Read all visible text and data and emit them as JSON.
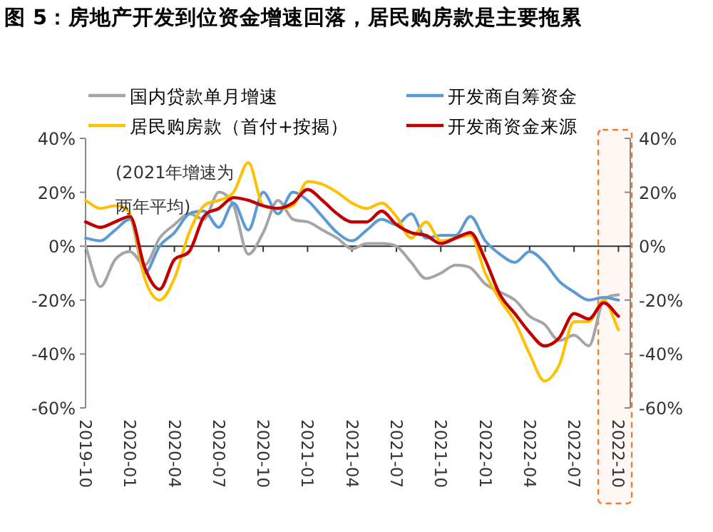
{
  "chart_data": {
    "type": "line",
    "title": "图 5：房地产开发到位资金增速回落，居民购房款是主要拖累",
    "x": [
      "2019-10",
      "2019-11",
      "2019-12",
      "2020-01",
      "2020-02",
      "2020-03",
      "2020-04",
      "2020-05",
      "2020-06",
      "2020-07",
      "2020-08",
      "2020-09",
      "2020-10",
      "2020-11",
      "2020-12",
      "2021-01",
      "2021-02",
      "2021-03",
      "2021-04",
      "2021-05",
      "2021-06",
      "2021-07",
      "2021-08",
      "2021-09",
      "2021-10",
      "2021-11",
      "2021-12",
      "2022-01",
      "2022-02",
      "2022-03",
      "2022-04",
      "2022-05",
      "2022-06",
      "2022-07",
      "2022-08",
      "2022-09",
      "2022-10"
    ],
    "series": [
      {
        "name": "国内贷款单月增速",
        "color": "#a5a5a5",
        "values": [
          0,
          -15,
          -5,
          -2,
          -7,
          3,
          8,
          12,
          10,
          20,
          15,
          -3,
          5,
          17,
          10,
          9,
          6,
          3,
          -1,
          1,
          1,
          0,
          -6,
          -12,
          -10,
          -7,
          -8,
          -14,
          -17,
          -20,
          -26,
          -29,
          -35,
          -33,
          -37,
          -20,
          -18
        ]
      },
      {
        "name": "开发商自筹资金",
        "color": "#5b9bd5",
        "values": [
          3,
          2,
          6,
          10,
          -10,
          0,
          5,
          12,
          13,
          7,
          16,
          6,
          20,
          12,
          20,
          17,
          11,
          5,
          2,
          6,
          10,
          8,
          12,
          3,
          4,
          4,
          11,
          2,
          -3,
          -6,
          -2,
          -6,
          -13,
          -17,
          -20,
          -19,
          -20
        ]
      },
      {
        "name": "居民购房款（首付+按揭）",
        "color": "#ffc000",
        "values": [
          17,
          14,
          15,
          12,
          -12,
          -20,
          -12,
          5,
          15,
          17,
          20,
          31,
          15,
          14,
          15,
          24,
          23,
          20,
          16,
          14,
          16,
          11,
          3,
          9,
          2,
          3,
          4,
          -10,
          -20,
          -28,
          -40,
          -50,
          -44,
          -28,
          -28,
          -20,
          -31
        ]
      },
      {
        "name": "开发商资金来源",
        "color": "#c00000",
        "values": [
          9,
          7,
          9,
          11,
          -8,
          -16,
          -5,
          -2,
          11,
          14,
          18,
          17,
          15,
          14,
          16,
          21,
          17,
          12,
          9,
          9,
          13,
          8,
          5,
          4,
          1,
          3,
          5,
          -5,
          -18,
          -25,
          -32,
          -37,
          -34,
          -25,
          -27,
          -21,
          -26
        ]
      }
    ],
    "xlim": [
      "2019-10",
      "2022-10-25"
    ],
    "xticks": [
      "2019-10",
      "2020-01",
      "2020-04",
      "2020-07",
      "2020-10",
      "2021-01",
      "2021-04",
      "2021-07",
      "2021-10",
      "2022-01",
      "2022-04",
      "2022-07",
      "2022-10"
    ],
    "ylim": [
      -60,
      40
    ],
    "yticks": [
      {
        "value": -60,
        "label": "-60%"
      },
      {
        "value": -40,
        "label": "-40%"
      },
      {
        "value": -20,
        "label": "-20%"
      },
      {
        "value": 0,
        "label": "0%"
      },
      {
        "value": 20,
        "label": "20%"
      },
      {
        "value": 40,
        "label": "40%"
      }
    ],
    "y2lim": [
      -60,
      40
    ],
    "y2ticks": [
      {
        "value": -60,
        "label": "-60%"
      },
      {
        "value": -40,
        "label": "-40%"
      },
      {
        "value": -20,
        "label": "-20%"
      },
      {
        "value": 0,
        "label": "0%"
      },
      {
        "value": 20,
        "label": "20%"
      },
      {
        "value": 40,
        "label": "40%"
      }
    ],
    "annotations": [
      "(2021年增速为",
      "两年平均)"
    ],
    "bands": [
      {
        "axis": "x",
        "from": "2022-08-20",
        "to": "2022-10-28",
        "color": "#ed7d31"
      }
    ],
    "ref_lines": [
      {
        "axis": "y",
        "value": 0,
        "color": "#333333"
      }
    ],
    "legend": "top",
    "grid": false,
    "marker": "none",
    "line_style": "solid"
  }
}
